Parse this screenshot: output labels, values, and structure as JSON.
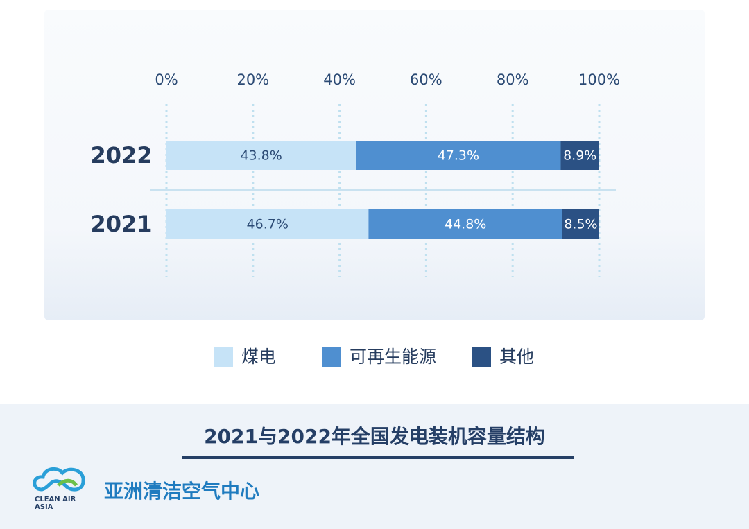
{
  "chart_data": {
    "type": "stacked-bar-horizontal",
    "title": "2021与2022年全国发电装机容量结构",
    "categories": [
      "2022",
      "2021"
    ],
    "series": [
      {
        "name": "煤电",
        "color": "#c6e3f7",
        "values": [
          43.8,
          46.7
        ],
        "value_labels": [
          "43.8%",
          "46.7%"
        ]
      },
      {
        "name": "可再生能源",
        "color": "#4f8fd0",
        "values": [
          47.3,
          44.8
        ],
        "value_labels": [
          "47.3%",
          "44.8%"
        ]
      },
      {
        "name": "其他",
        "color": "#2b5184",
        "values": [
          8.9,
          8.5
        ],
        "value_labels": [
          "8.9%",
          "8.5%"
        ]
      }
    ],
    "xlim": [
      0,
      100
    ],
    "xticks": [
      {
        "value": 0,
        "label": "0%"
      },
      {
        "value": 20,
        "label": "20%"
      },
      {
        "value": 40,
        "label": "40%"
      },
      {
        "value": 60,
        "label": "60%"
      },
      {
        "value": 80,
        "label": "80%"
      },
      {
        "value": 100,
        "label": "100%"
      }
    ],
    "grid": true
  },
  "footer": {
    "org": "亚洲清洁空气中心",
    "logo_lines": [
      "CLEAN AIR",
      "ASIA"
    ]
  }
}
